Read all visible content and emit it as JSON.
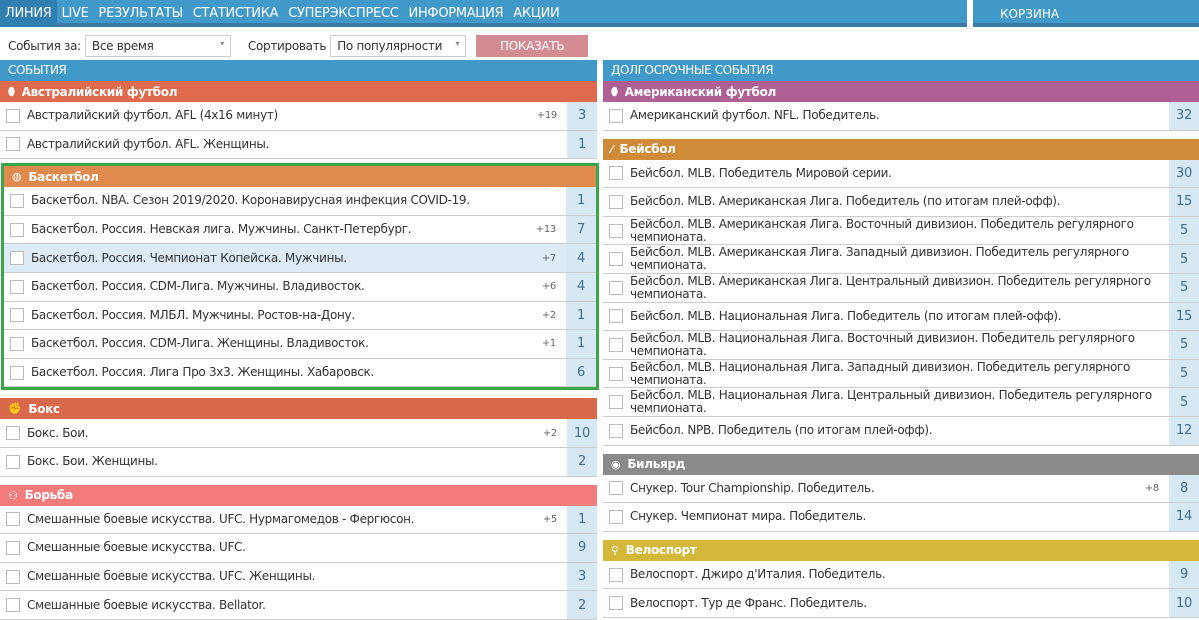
{
  "nav": {
    "items": [
      "ЛИНИЯ",
      "LIVE",
      "РЕЗУЛЬТАТЫ",
      "СТАТИСТИКА",
      "СУПЕРЭКСПРЕСС",
      "ИНФОРМАЦИЯ",
      "АКЦИИ"
    ],
    "active": "ЛИНИЯ",
    "cart": "КОРЗИНА"
  },
  "filters": {
    "period_label": "События за:",
    "period_value": "Все время",
    "sort_label": "Сортировать",
    "sort_value": "По популярности",
    "show_button": "ПОКАЗАТЬ"
  },
  "left": {
    "title": "СОБЫТИЯ",
    "sections": [
      {
        "name": "Австралийский футбол",
        "icon": "australian-football-icon",
        "color": "#e06a4e",
        "rows": [
          {
            "t": "Австралийский футбол. AFL (4x16 минут)",
            "p": "+19",
            "c": "3"
          },
          {
            "t": "Австралийский футбол. AFL. Женщины.",
            "p": "",
            "c": "1"
          }
        ]
      },
      {
        "name": "Баскетбол",
        "icon": "basketball-icon",
        "color": "#e08a4e",
        "selected": true,
        "rows": [
          {
            "t": "Баскетбол. NBA. Сезон 2019/2020. Коронавирусная инфекция COVID-19.",
            "p": "",
            "c": "1"
          },
          {
            "t": "Баскетбол. Россия. Невская лига. Мужчины. Санкт-Петербург.",
            "p": "+13",
            "c": "7"
          },
          {
            "t": "Баскетбол. Россия. Чемпионат Копейска. Мужчины.",
            "p": "+7",
            "c": "4",
            "hl": true
          },
          {
            "t": "Баскетбол. Россия. CDM-Лига. Мужчины. Владивосток.",
            "p": "+6",
            "c": "4"
          },
          {
            "t": "Баскетбол. Россия. МЛБЛ. Мужчины. Ростов-на-Дону.",
            "p": "+2",
            "c": "1"
          },
          {
            "t": "Баскетбол. Россия. CDM-Лига. Женщины. Владивосток.",
            "p": "+1",
            "c": "1"
          },
          {
            "t": "Баскетбол. Россия. Лига Про 3х3. Женщины. Хабаровск.",
            "p": "",
            "c": "6"
          }
        ]
      },
      {
        "name": "Бокс",
        "icon": "boxing-glove-icon",
        "color": "#d9694a",
        "rows": [
          {
            "t": "Бокс. Бои.",
            "p": "+2",
            "c": "10"
          },
          {
            "t": "Бокс. Бои. Женщины.",
            "p": "",
            "c": "2"
          }
        ]
      },
      {
        "name": "Борьба",
        "icon": "wrestling-icon",
        "color": "#f47b7b",
        "rows": [
          {
            "t": "Смешанные боевые искусства. UFC. Нурмагомедов - Фергюсон.",
            "p": "+5",
            "c": "1"
          },
          {
            "t": "Смешанные боевые искусства. UFC.",
            "p": "",
            "c": "9"
          },
          {
            "t": "Смешанные боевые искусства. UFC. Женщины.",
            "p": "",
            "c": "3"
          },
          {
            "t": "Смешанные боевые искусства. Bellator.",
            "p": "",
            "c": "2"
          }
        ]
      }
    ]
  },
  "right": {
    "title": "ДОЛГОСРОЧНЫЕ СОБЫТИЯ",
    "sections": [
      {
        "name": "Американский футбол",
        "icon": "american-football-icon",
        "color": "#b05f95",
        "rows": [
          {
            "t": "Американский футбол. NFL. Победитель.",
            "p": "",
            "c": "32"
          }
        ]
      },
      {
        "name": "Бейсбол",
        "icon": "baseball-bat-icon",
        "color": "#d08b38",
        "rows": [
          {
            "t": "Бейсбол. MLB. Победитель Мировой серии.",
            "p": "",
            "c": "30"
          },
          {
            "t": "Бейсбол. MLB. Американская Лига. Победитель (по итогам плей-офф).",
            "p": "",
            "c": "15"
          },
          {
            "t": "Бейсбол. MLB. Американская Лига. Восточный дивизион. Победитель регулярного чемпионата.",
            "p": "",
            "c": "5"
          },
          {
            "t": "Бейсбол. MLB. Американская Лига. Западный дивизион. Победитель регулярного чемпионата.",
            "p": "",
            "c": "5"
          },
          {
            "t": "Бейсбол. MLB. Американская Лига. Центральный дивизион. Победитель регулярного чемпионата.",
            "p": "",
            "c": "5"
          },
          {
            "t": "Бейсбол. MLB. Национальная Лига. Победитель (по итогам плей-офф).",
            "p": "",
            "c": "15"
          },
          {
            "t": "Бейсбол. MLB. Национальная Лига. Восточный дивизион. Победитель регулярного чемпионата.",
            "p": "",
            "c": "5"
          },
          {
            "t": "Бейсбол. MLB. Национальная Лига. Западный дивизион. Победитель регулярного чемпионата.",
            "p": "",
            "c": "5"
          },
          {
            "t": "Бейсбол. MLB. Национальная Лига. Центральный дивизион. Победитель регулярного чемпионата.",
            "p": "",
            "c": "5"
          },
          {
            "t": "Бейсбол. NPB. Победитель (по итогам плей-офф).",
            "p": "",
            "c": "12"
          }
        ]
      },
      {
        "name": "Бильярд",
        "icon": "billiard-ball-icon",
        "color": "#8a8a8a",
        "rows": [
          {
            "t": "Снукер. Tour Championship. Победитель.",
            "p": "+8",
            "c": "8"
          },
          {
            "t": "Снукер. Чемпионат мира. Победитель.",
            "p": "",
            "c": "14"
          }
        ]
      },
      {
        "name": "Велоспорт",
        "icon": "bicycle-icon",
        "color": "#d4b83a",
        "rows": [
          {
            "t": "Велоспорт. Джиро д'Италия. Победитель.",
            "p": "",
            "c": "9"
          },
          {
            "t": "Велоспорт. Тур де Франс. Победитель.",
            "p": "",
            "c": "10"
          }
        ]
      }
    ]
  }
}
